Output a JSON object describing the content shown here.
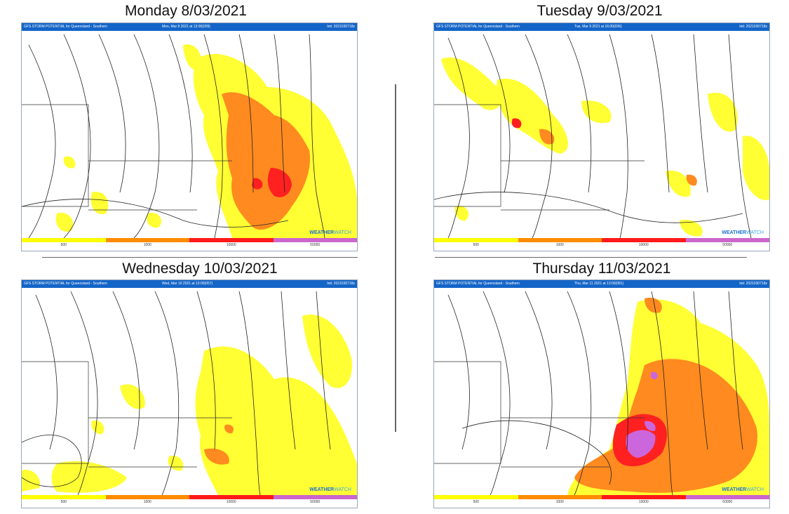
{
  "panels": [
    {
      "title": "Monday 8/03/2021",
      "header_left": "GFS STORM POTENTIAL for Queensland - Southern",
      "header_center": "Mon, Mar 8 2021 at 13:00(009)",
      "header_right": "Init: 2021030718z",
      "legend_ticks": [
        "500",
        "1000",
        "10000",
        "50000"
      ]
    },
    {
      "title": "Tuesday 9/03/2021",
      "header_left": "GFS STORM POTENTIAL for Queensland - Southern",
      "header_center": "Tue, Mar 9 2021 at 16:00(036)",
      "header_right": "Init: 2021030718z",
      "legend_ticks": [
        "500",
        "1000",
        "10000",
        "50000"
      ]
    },
    {
      "title": "Wednesday 10/03/2021",
      "header_left": "GFS STORM POTENTIAL for Queensland - Southern",
      "header_center": "Wed, Mar 10 2021 at 13:00(057)",
      "header_right": "Init: 2021030718z",
      "legend_ticks": [
        "500",
        "1000",
        "10000",
        "50000"
      ]
    },
    {
      "title": "Thursday 11/03/2021",
      "header_left": "GFS STORM POTENTIAL for Queensland - Southern",
      "header_center": "Thu, Mar 11 2021 at 13:00(081)",
      "header_right": "Init: 2021030718z",
      "legend_ticks": [
        "500",
        "1000",
        "10000",
        "50000"
      ]
    }
  ],
  "brand": {
    "part1": "WEATHER",
    "part2": "WATCH"
  },
  "legend_colors": [
    "#ffff00",
    "#ff8c00",
    "#ff1a1a",
    "#cc66cc"
  ],
  "map_colors": {
    "low": "#ffff33",
    "moderate": "#ff8a1f",
    "high": "#ff2020",
    "extreme": "#cc66dd",
    "isobar": "#222222"
  }
}
